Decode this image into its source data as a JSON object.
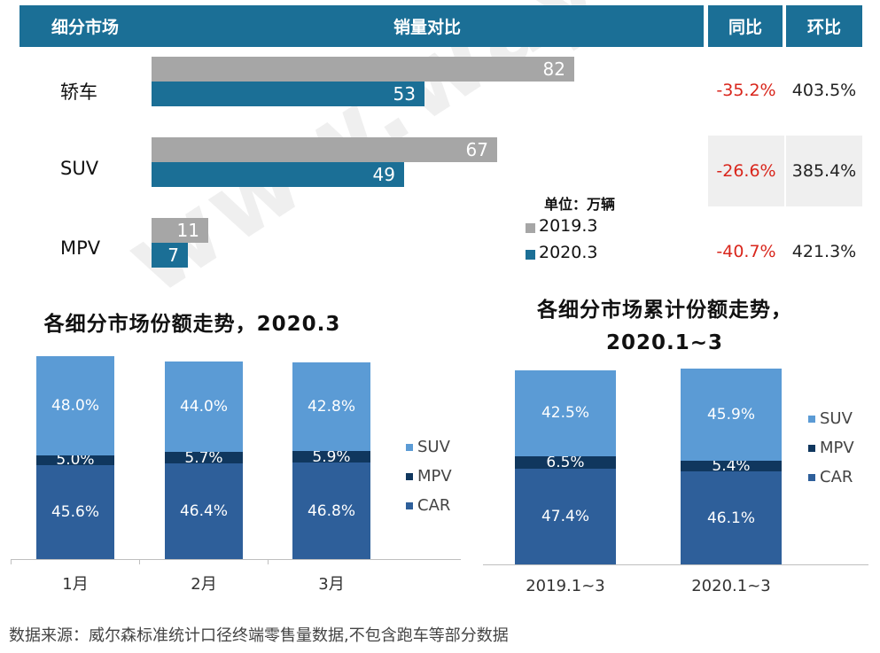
{
  "header": {
    "segment": "细分市场",
    "compare": "销量对比",
    "yoy": "同比",
    "mom": "环比"
  },
  "chart_data": [
    {
      "type": "bar",
      "orientation": "horizontal",
      "categories": [
        "轿车",
        "SUV",
        "MPV"
      ],
      "series": [
        {
          "name": "2019.3",
          "values": [
            82,
            67,
            11
          ],
          "color": "#a6a6a6"
        },
        {
          "name": "2020.3",
          "values": [
            53,
            49,
            7
          ],
          "color": "#1b6f96"
        }
      ],
      "yoy": [
        "-35.2%",
        "-26.6%",
        "-40.7%"
      ],
      "mom": [
        "403.5%",
        "385.4%",
        "421.3%"
      ],
      "unit": "单位：万辆"
    },
    {
      "type": "bar",
      "stacked": true,
      "title": "各细分市场份额走势，2020.3",
      "categories": [
        "1月",
        "2月",
        "3月"
      ],
      "series": [
        {
          "name": "CAR",
          "values": [
            45.6,
            46.4,
            46.8
          ],
          "labels": [
            "45.6%",
            "46.4%",
            "46.8%"
          ],
          "color": "#2e5f9a"
        },
        {
          "name": "MPV",
          "values": [
            5.0,
            5.7,
            5.9
          ],
          "labels": [
            "5.0%",
            "5.7%",
            "5.9%"
          ],
          "color": "#10375e"
        },
        {
          "name": "SUV",
          "values": [
            48.0,
            44.0,
            42.8
          ],
          "labels": [
            "48.0%",
            "44.0%",
            "42.8%"
          ],
          "color": "#5b9bd5"
        }
      ],
      "legend": [
        "SUV",
        "MPV",
        "CAR"
      ]
    },
    {
      "type": "bar",
      "stacked": true,
      "title": [
        "各细分市场累计份额走势，",
        "2020.1~3"
      ],
      "categories": [
        "2019.1~3",
        "2020.1~3"
      ],
      "series": [
        {
          "name": "CAR",
          "values": [
            47.4,
            46.1
          ],
          "labels": [
            "47.4%",
            "46.1%"
          ],
          "color": "#2e5f9a"
        },
        {
          "name": "MPV",
          "values": [
            6.5,
            5.4
          ],
          "labels": [
            "6.5%",
            "5.4%"
          ],
          "color": "#10375e"
        },
        {
          "name": "SUV",
          "values": [
            42.5,
            45.9
          ],
          "labels": [
            "42.5%",
            "45.9%"
          ],
          "color": "#5b9bd5"
        }
      ],
      "legend": [
        "SUV",
        "MPV",
        "CAR"
      ]
    }
  ],
  "note": "数据来源：威尔森标准统计口径终端零售量数据,不包含跑车等部分数据",
  "watermark": "www.way-s.cn"
}
